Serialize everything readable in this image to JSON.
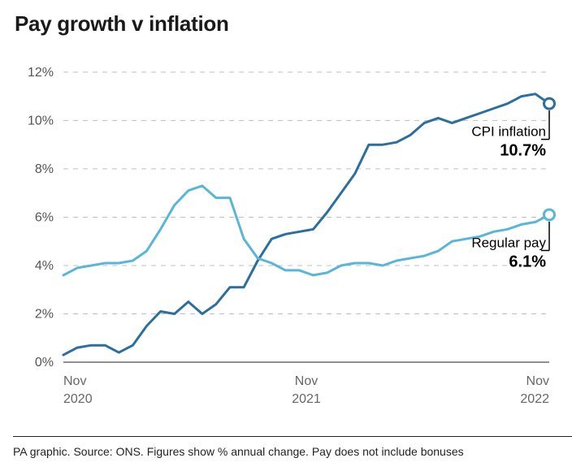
{
  "title": "Pay growth v inflation",
  "footnote": "PA graphic. Source: ONS. Figures show % annual change. Pay does not include bonuses",
  "chart": {
    "type": "line",
    "background_color": "#ffffff",
    "grid_color": "#bfbfbf",
    "axis_color": "#222222",
    "title_fontsize": 26,
    "tick_fontsize": 16,
    "y": {
      "min": 0,
      "max": 12.5,
      "ticks": [
        0,
        2,
        4,
        6,
        8,
        10,
        12
      ],
      "suffix": "%"
    },
    "x": {
      "min": 0,
      "max": 24,
      "ticks": [
        {
          "i": 0,
          "line1": "Nov",
          "line2": "2020"
        },
        {
          "i": 12,
          "line1": "Nov",
          "line2": "2021"
        },
        {
          "i": 24,
          "line1": "Nov",
          "line2": "2022"
        }
      ]
    },
    "series": [
      {
        "id": "cpi",
        "label": "CPI inflation",
        "value_label": "10.7%",
        "color": "#2b6f9e",
        "line_width": 3,
        "end_marker": true,
        "marker_radius": 6.5,
        "marker_fill": "#ffffff",
        "marker_stroke_width": 3,
        "points": [
          0.3,
          0.6,
          0.7,
          0.7,
          0.4,
          0.7,
          1.5,
          2.1,
          2.0,
          2.5,
          2.0,
          2.4,
          3.1,
          3.1,
          4.2,
          5.1,
          5.3,
          5.4,
          5.5,
          6.2,
          7.0,
          7.8,
          9.0,
          9.0,
          9.1,
          9.4,
          9.9,
          10.1,
          9.9,
          10.1,
          10.3,
          10.5,
          10.7,
          11.0,
          11.1,
          10.7
        ],
        "anchor_index": 35
      },
      {
        "id": "pay",
        "label": "Regular pay",
        "value_label": "6.1%",
        "color": "#5ab6d6",
        "line_width": 3,
        "end_marker": true,
        "marker_radius": 6.5,
        "marker_fill": "#ffffff",
        "marker_stroke_width": 3,
        "points": [
          3.6,
          3.9,
          4.0,
          4.1,
          4.1,
          4.2,
          4.6,
          5.5,
          6.5,
          7.1,
          7.3,
          6.8,
          6.8,
          5.1,
          4.3,
          4.1,
          3.8,
          3.8,
          3.6,
          3.7,
          4.0,
          4.1,
          4.1,
          4.0,
          4.2,
          4.3,
          4.4,
          4.6,
          5.0,
          5.1,
          5.2,
          5.4,
          5.5,
          5.7,
          5.8,
          6.1
        ],
        "anchor_index": 35
      }
    ],
    "annotations": {
      "cpi": {
        "label_fontsize": 17,
        "value_fontsize": 20,
        "value_weight": 700
      },
      "pay": {
        "label_fontsize": 17,
        "value_fontsize": 20,
        "value_weight": 700
      }
    }
  }
}
